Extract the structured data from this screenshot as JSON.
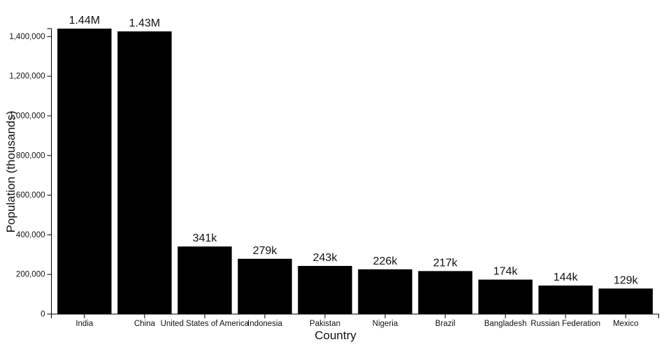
{
  "chart_data": {
    "type": "bar",
    "title": "",
    "xlabel": "Country",
    "ylabel": "Population (thousands)",
    "categories": [
      "India",
      "China",
      "United States of America",
      "Indonesia",
      "Pakistan",
      "Nigeria",
      "Brazil",
      "Bangladesh",
      "Russian Federation",
      "Mexico"
    ],
    "values": [
      1440000,
      1426000,
      341000,
      279000,
      243000,
      226000,
      217000,
      174000,
      144000,
      129000
    ],
    "bar_labels": [
      "1.44M",
      "1.43M",
      "341k",
      "279k",
      "243k",
      "226k",
      "217k",
      "174k",
      "144k",
      "129k"
    ],
    "ylim": [
      0,
      1440000
    ],
    "y_ticks": [
      0,
      200000,
      400000,
      600000,
      800000,
      1000000,
      1200000,
      1400000
    ],
    "y_tick_labels": [
      "0",
      "200,000",
      "400,000",
      "600,000",
      "800,000",
      "1,000,000",
      "1,200,000",
      "1,400,000"
    ],
    "bar_color": "#000000",
    "axis_color": "#000000",
    "text_color": "#111111",
    "grid": false,
    "legend": null,
    "layout_hints": {
      "bar_label_position": "above-bar",
      "tick_style": "outward-6px-d3-caps",
      "background": "#ffffff"
    }
  }
}
